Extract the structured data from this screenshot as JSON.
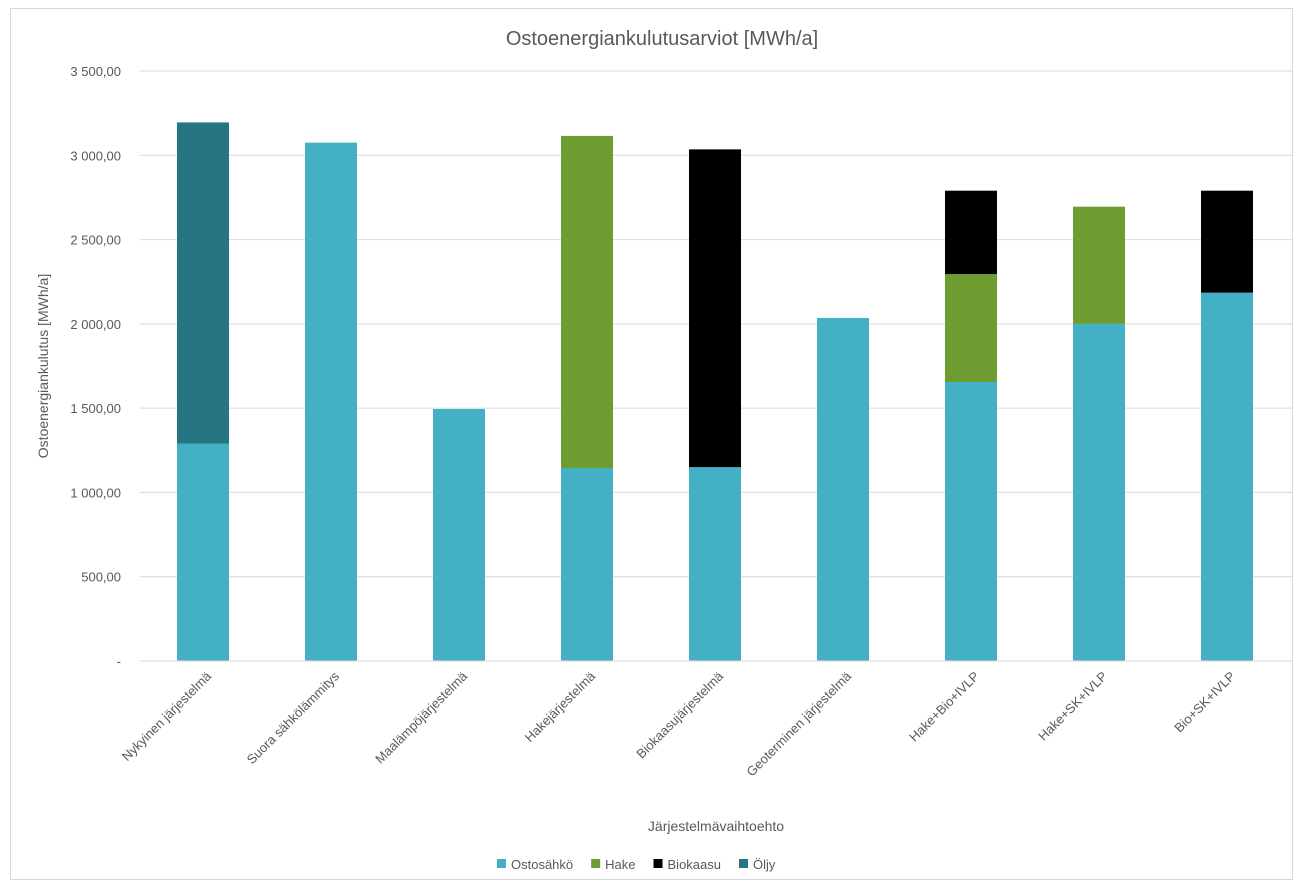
{
  "chart_data": {
    "type": "bar",
    "stacked": true,
    "title": "Ostoenergiankulutusarviot [MWh/a]",
    "xlabel": "Järjestelmävaihtoehto",
    "ylabel": "Ostoenergiankulutus [MWh/a]",
    "ylim": [
      0,
      3500
    ],
    "yticks": [
      0,
      500,
      1000,
      1500,
      2000,
      2500,
      3000,
      3500
    ],
    "ytick_labels": [
      "-",
      "500,00",
      "1 000,00",
      "1 500,00",
      "2 000,00",
      "2 500,00",
      "3 000,00",
      "3 500,00"
    ],
    "grid": true,
    "legend_position": "bottom",
    "categories": [
      "Nykyinen järjestelmä",
      "Suora sähkölämmitys",
      "Maalämpöjärjestelmä",
      "Hakejärjestelmä",
      "Biokaasujärjestelmä",
      "Geoterminen järjestelmä",
      "Hake+Bio+IVLP",
      "Hake+SK+IVLP",
      "Bio+SK+IVLP"
    ],
    "series": [
      {
        "name": "Ostosähkö",
        "color": "#43b0c6",
        "values": [
          1290,
          3075,
          1495,
          1145,
          1150,
          2035,
          1655,
          2000,
          2185
        ]
      },
      {
        "name": "Hake",
        "color": "#6d9c31",
        "values": [
          0,
          0,
          0,
          1970,
          0,
          0,
          640,
          695,
          0
        ]
      },
      {
        "name": "Biokaasu",
        "color": "#000000",
        "values": [
          0,
          0,
          0,
          0,
          1885,
          0,
          495,
          0,
          605
        ]
      },
      {
        "name": "Öljy",
        "color": "#257583",
        "values": [
          1905,
          0,
          0,
          0,
          0,
          0,
          0,
          0,
          0
        ]
      }
    ]
  }
}
